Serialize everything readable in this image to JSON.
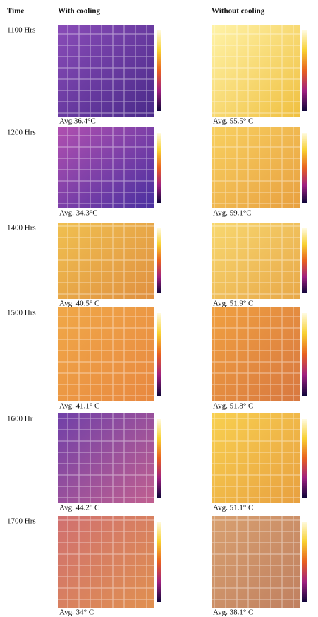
{
  "table": {
    "header": [
      "Time",
      "With cooling",
      "Without cooling"
    ],
    "rows": [
      [
        "1100 Hrs",
        "Avg.36.4°C",
        "Avg. 55.5° C"
      ],
      [
        "1200 Hrs",
        "Avg.  34.3°C",
        "Avg.  59.1°C"
      ],
      [
        "1400 Hrs",
        "Avg. 40.5° C",
        "Avg. 51.9° C"
      ],
      [
        "1500 Hrs",
        "Avg. 41.1° C",
        "Avg. 51.8° C"
      ],
      [
        "1600 Hr",
        "Avg. 44.2° C",
        "Avg. 51.1° C"
      ],
      [
        "1700 Hrs",
        "Avg. 34° C",
        "Avg. 38.1° C"
      ]
    ]
  }
}
